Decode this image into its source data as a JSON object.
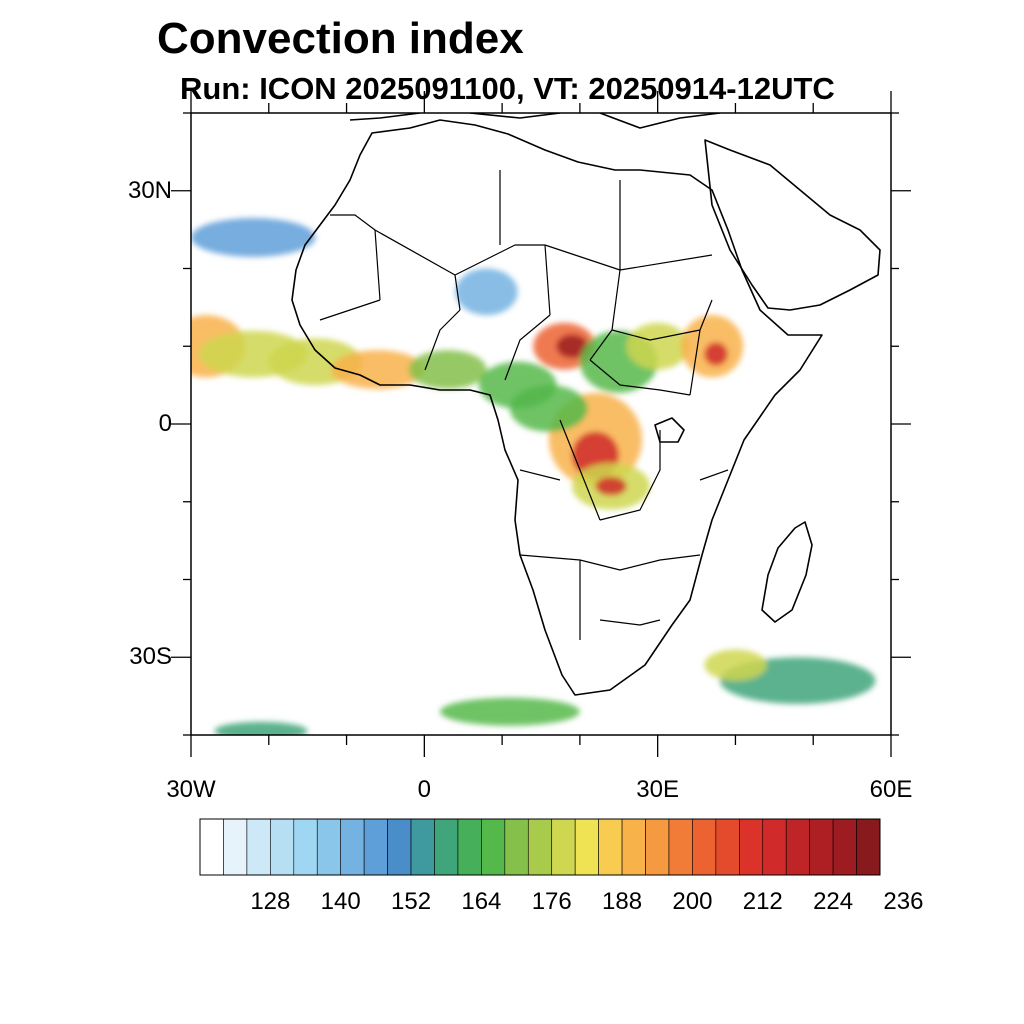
{
  "title": "Convection index",
  "subtitle": "Run: ICON 2025091100,  VT: 20250914-12UTC",
  "map": {
    "lon_range": [
      -30,
      60
    ],
    "lat_range": [
      -40,
      40
    ],
    "lat_labels": [
      {
        "lat": 30,
        "text": "30N"
      },
      {
        "lat": 0,
        "text": "0"
      },
      {
        "lat": -30,
        "text": "30S"
      }
    ],
    "lon_labels": [
      {
        "lon": -30,
        "text": "30W"
      },
      {
        "lon": 0,
        "text": "0"
      },
      {
        "lon": 30,
        "text": "30E"
      },
      {
        "lon": 60,
        "text": "60E"
      }
    ],
    "colorbar": {
      "colors": [
        "#ffffff",
        "#e6f3fb",
        "#cde9f7",
        "#b6dff4",
        "#9fd6f2",
        "#8ac5ea",
        "#74b2e2",
        "#5f9fd9",
        "#4a8ec9",
        "#3f9aa0",
        "#40a57a",
        "#45af5a",
        "#55b84a",
        "#84c04a",
        "#a8cb4b",
        "#cfd64f",
        "#efe354",
        "#f8cc50",
        "#f8b24a",
        "#f59a40",
        "#f07c37",
        "#ec6331",
        "#e44b2d",
        "#db3229",
        "#d02a2a",
        "#bf2427",
        "#ae1f24",
        "#9c1c21",
        "#881a1d"
      ],
      "labels": [
        "128",
        "140",
        "152",
        "164",
        "176",
        "188",
        "200",
        "212",
        "224",
        "236"
      ]
    },
    "convection_cells": [
      {
        "lon": -28,
        "lat": 10,
        "rx": 5,
        "ry": 4,
        "value": 188
      },
      {
        "lon": -22,
        "lat": 9,
        "rx": 7,
        "ry": 3,
        "value": 176
      },
      {
        "lon": -14,
        "lat": 8,
        "rx": 6,
        "ry": 3,
        "value": 176
      },
      {
        "lon": -6,
        "lat": 7,
        "rx": 6,
        "ry": 2.5,
        "value": 188
      },
      {
        "lon": 3,
        "lat": 7,
        "rx": 5,
        "ry": 2.5,
        "value": 170
      },
      {
        "lon": 12,
        "lat": 5,
        "rx": 5,
        "ry": 3,
        "value": 164
      },
      {
        "lon": 18,
        "lat": 10,
        "rx": 4,
        "ry": 3,
        "value": 200
      },
      {
        "lon": 19,
        "lat": 10,
        "rx": 2,
        "ry": 1.5,
        "value": 224
      },
      {
        "lon": 25,
        "lat": 8,
        "rx": 5,
        "ry": 4,
        "value": 164
      },
      {
        "lon": 30,
        "lat": 10,
        "rx": 4,
        "ry": 3,
        "value": 176
      },
      {
        "lon": 37,
        "lat": 10,
        "rx": 4,
        "ry": 4,
        "value": 188
      },
      {
        "lon": 37.5,
        "lat": 9,
        "rx": 1.5,
        "ry": 1.5,
        "value": 212
      },
      {
        "lon": 22,
        "lat": -2,
        "rx": 6,
        "ry": 6,
        "value": 188
      },
      {
        "lon": 22,
        "lat": -4,
        "rx": 3,
        "ry": 3,
        "value": 212
      },
      {
        "lon": 24,
        "lat": -8,
        "rx": 5,
        "ry": 3,
        "value": 176
      },
      {
        "lon": 24,
        "lat": -8,
        "rx": 2,
        "ry": 1.2,
        "value": 212
      },
      {
        "lon": 16,
        "lat": 2,
        "rx": 5,
        "ry": 3,
        "value": 164
      },
      {
        "lon": 8,
        "lat": 17,
        "rx": 4,
        "ry": 3,
        "value": 140
      },
      {
        "lon": -22,
        "lat": 24,
        "rx": 8,
        "ry": 2.5,
        "value": 146
      },
      {
        "lon": 48,
        "lat": -33,
        "rx": 10,
        "ry": 3,
        "value": 158
      },
      {
        "lon": 40,
        "lat": -31,
        "rx": 4,
        "ry": 2,
        "value": 176
      },
      {
        "lon": 11,
        "lat": -37,
        "rx": 9,
        "ry": 1.8,
        "value": 164
      },
      {
        "lon": -21,
        "lat": -39.5,
        "rx": 6,
        "ry": 1.2,
        "value": 158
      }
    ]
  }
}
